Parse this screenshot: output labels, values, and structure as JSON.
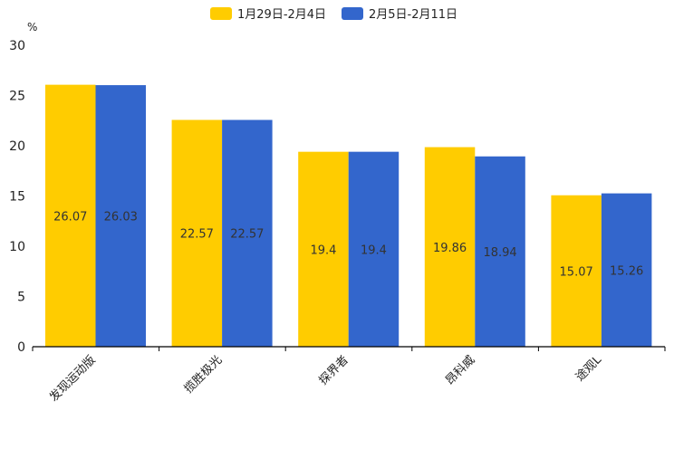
{
  "chart_data": {
    "type": "bar",
    "title": "",
    "ylabel": "%",
    "xlabel": "",
    "ylim": [
      0,
      30
    ],
    "yticks": [
      0,
      5,
      10,
      15,
      20,
      25,
      30
    ],
    "categories": [
      "发现运动版",
      "揽胜极光",
      "探界者",
      "昂科威",
      "途观L"
    ],
    "series": [
      {
        "name": "1月29日-2月4日",
        "color": "#FFCC00",
        "values": [
          26.07,
          22.57,
          19.4,
          19.86,
          15.07
        ]
      },
      {
        "name": "2月5日-2月11日",
        "color": "#3366CC",
        "values": [
          26.03,
          22.57,
          19.4,
          18.94,
          15.26
        ]
      }
    ],
    "legend": "top-center",
    "grid": false
  }
}
